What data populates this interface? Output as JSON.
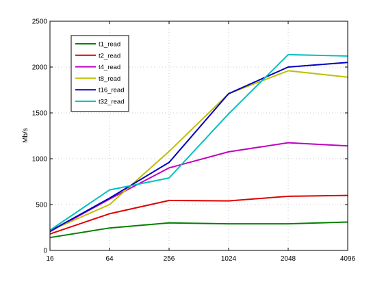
{
  "chart_data": {
    "type": "line",
    "title": "",
    "xlabel": "",
    "ylabel": "Mb/s",
    "categories": [
      "16",
      "64",
      "256",
      "1024",
      "2048",
      "4096"
    ],
    "ylim": [
      0,
      2500
    ],
    "yticks": [
      0,
      500,
      1000,
      1500,
      2000,
      2500
    ],
    "yticklabels": [
      "0",
      "500",
      "1000",
      "1500",
      "2000",
      "2500"
    ],
    "grid": true,
    "legend_position": "top-left",
    "series": [
      {
        "name": "t1_read",
        "color": "#008000",
        "values": [
          140,
          245,
          300,
          290,
          290,
          310
        ]
      },
      {
        "name": "t2_read",
        "color": "#dd0000",
        "values": [
          180,
          400,
          545,
          540,
          590,
          600
        ]
      },
      {
        "name": "t4_read",
        "color": "#c000c0",
        "values": [
          205,
          560,
          900,
          1075,
          1175,
          1140
        ]
      },
      {
        "name": "t8_read",
        "color": "#bfbf00",
        "values": [
          215,
          500,
          1080,
          1710,
          1960,
          1890
        ]
      },
      {
        "name": "t16_read",
        "color": "#0000c0",
        "values": [
          210,
          570,
          960,
          1710,
          2000,
          2050
        ]
      },
      {
        "name": "t32_read",
        "color": "#00bfbf",
        "values": [
          220,
          660,
          790,
          1490,
          2135,
          2120
        ]
      }
    ]
  }
}
